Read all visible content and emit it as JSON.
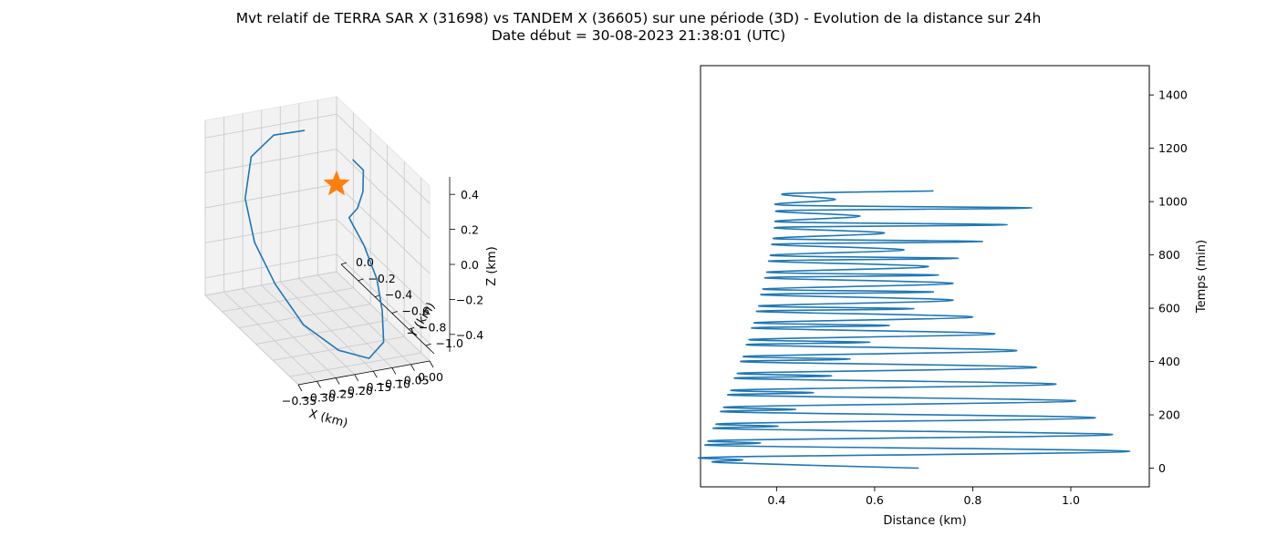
{
  "figure": {
    "title_line1": "Mvt relatif de TERRA SAR X (31698) vs TANDEM X (36605) sur une période (3D) - Evolution de la distance sur 24h",
    "title_line2": "Date début = 30-08-2023 21:38:01 (UTC)"
  },
  "colors": {
    "series": "#1f77b4",
    "marker": "#ff7f0e",
    "pane": "#f2f2f2",
    "grid": "#cccccc"
  },
  "chart_data": [
    {
      "type": "line3d",
      "xlabel": "X (km)",
      "ylabel": "Y (km)",
      "zlabel": "Z (km)",
      "xlim": [
        -0.35,
        0.0
      ],
      "ylim": [
        -1.1,
        0.0
      ],
      "zlim": [
        -0.5,
        0.5
      ],
      "xticks": [
        "−0.35",
        "−0.30",
        "−0.25",
        "−0.20",
        "−0.15",
        "−0.10",
        "−0.05",
        "0.00"
      ],
      "yticks": [
        "0.0",
        "−0.2",
        "−0.4",
        "−0.6",
        "−0.8",
        "−1.0"
      ],
      "zticks": [
        "0.4",
        "0.2",
        "0.0",
        "−0.2",
        "−0.4"
      ],
      "grid": true,
      "series": [
        {
          "points": [
            [
              -0.07,
              -0.5,
              0.4
            ],
            [
              -0.03,
              -0.45,
              0.3
            ],
            [
              -0.02,
              -0.4,
              0.15
            ],
            [
              -0.03,
              -0.38,
              0.05
            ],
            [
              -0.05,
              -0.37,
              0.0
            ],
            [
              -0.04,
              -0.38,
              -0.05
            ],
            [
              -0.04,
              -0.5,
              -0.1
            ],
            [
              -0.05,
              -0.7,
              -0.2
            ],
            [
              -0.07,
              -0.85,
              -0.3
            ],
            [
              -0.1,
              -1.0,
              -0.4
            ],
            [
              -0.15,
              -1.05,
              -0.45
            ],
            [
              -0.22,
              -1.0,
              -0.4
            ],
            [
              -0.28,
              -0.85,
              -0.3
            ],
            [
              -0.31,
              -0.65,
              -0.15
            ],
            [
              -0.32,
              -0.45,
              0.0
            ],
            [
              -0.3,
              -0.25,
              0.15
            ],
            [
              -0.25,
              -0.1,
              0.3
            ],
            [
              -0.19,
              -0.1,
              0.4
            ],
            [
              -0.13,
              -0.2,
              0.45
            ]
          ]
        }
      ],
      "marker": {
        "shape": "star",
        "point": [
          0.0,
          0.0,
          0.0
        ]
      }
    },
    {
      "type": "line",
      "xlabel": "Distance (km)",
      "ylabel": "Temps (min)",
      "xlim": [
        0.245,
        1.16
      ],
      "ylim": [
        -70,
        1510
      ],
      "xticks": [
        0.4,
        0.6,
        0.8,
        1.0
      ],
      "yticks": [
        0,
        200,
        400,
        600,
        800,
        1000,
        1200,
        1400
      ],
      "grid": false,
      "series": [
        {
          "x": [
            0.69,
            0.287,
            0.331,
            0.29,
            1.12,
            0.296,
            0.367,
            0.3,
            1.085,
            0.304,
            0.403,
            0.308,
            1.05,
            0.312,
            0.439,
            0.316,
            1.01,
            0.32,
            0.475,
            0.324,
            0.97,
            0.328,
            0.512,
            0.332,
            0.93,
            0.336,
            0.55,
            0.34,
            0.89,
            0.344,
            0.59,
            0.348,
            0.845,
            0.352,
            0.63,
            0.356,
            0.8,
            0.36,
            0.68,
            0.364,
            0.76,
            0.368,
            0.72,
            0.372,
            0.76,
            0.376,
            0.73,
            0.38,
            0.71,
            0.384,
            0.77,
            0.388,
            0.66,
            0.392,
            0.82,
            0.396,
            0.62,
            0.4,
            0.87,
            0.404,
            0.57,
            0.408,
            0.92,
            0.412,
            0.52,
            0.416,
            0.72
          ],
          "y": [
            0,
            21,
            31,
            42,
            63,
            84,
            94,
            105,
            126,
            147,
            157,
            168,
            189,
            210,
            220,
            231,
            252,
            273,
            283,
            294,
            315,
            336,
            346,
            357,
            378,
            399,
            409,
            420,
            441,
            462,
            472,
            483,
            504,
            525,
            535,
            546,
            567,
            588,
            598,
            609,
            630,
            651,
            661,
            672,
            693,
            714,
            724,
            735,
            756,
            777,
            787,
            798,
            819,
            840,
            850,
            861,
            882,
            903,
            913,
            924,
            945,
            966,
            976,
            987,
            1008,
            1029,
            1040
          ]
        }
      ]
    }
  ]
}
